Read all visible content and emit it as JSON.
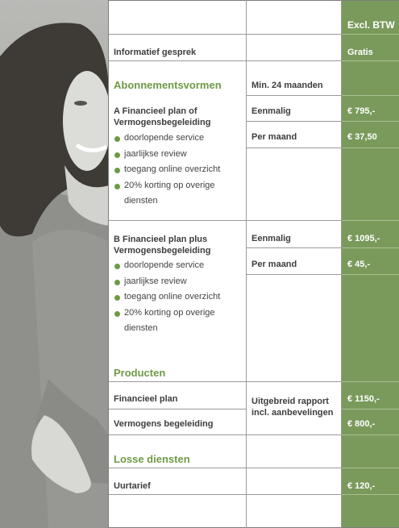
{
  "header": {
    "excl_btw": "Excl. BTW"
  },
  "intro": {
    "label": "Informatief gesprek",
    "price": "Gratis"
  },
  "abonnementen": {
    "title": "Abonnementsvormen",
    "min_label": "Min. 24 maanden",
    "plan_a": {
      "title": "A Financieel plan of Vermogensbegeleiding",
      "bullets": [
        "doorlopende service",
        "jaarlijkse review",
        "toegang online overzicht",
        "20% korting op overige diensten"
      ],
      "rows": [
        {
          "label": "Eenmalig",
          "price": "€ 795,-"
        },
        {
          "label": "Per maand",
          "price": "€ 37,50"
        }
      ]
    },
    "plan_b": {
      "title": "B Financieel plan plus Vermogensbegeleiding",
      "bullets": [
        "doorlopende service",
        "jaarlijkse review",
        "toegang online overzicht",
        "20% korting op overige diensten"
      ],
      "rows": [
        {
          "label": "Eenmalig",
          "price": "€ 1095,-"
        },
        {
          "label": "Per maand",
          "price": "€ 45,-"
        }
      ]
    }
  },
  "producten": {
    "title": "Producten",
    "rows": [
      {
        "label": "Financieel plan",
        "price": "€ 1150,-"
      },
      {
        "label": "Vermogens begeleiding",
        "price": "€ 800,-"
      }
    ],
    "note": "Uitgebreid rapport incl. aanbevelingen"
  },
  "losse": {
    "title": "Losse diensten",
    "rows": [
      {
        "label": "Uurtarief",
        "price": "€ 120,-"
      }
    ]
  },
  "colors": {
    "green": "#7a9a5c",
    "accent": "#6e9a45",
    "text": "#3d3d3d"
  }
}
